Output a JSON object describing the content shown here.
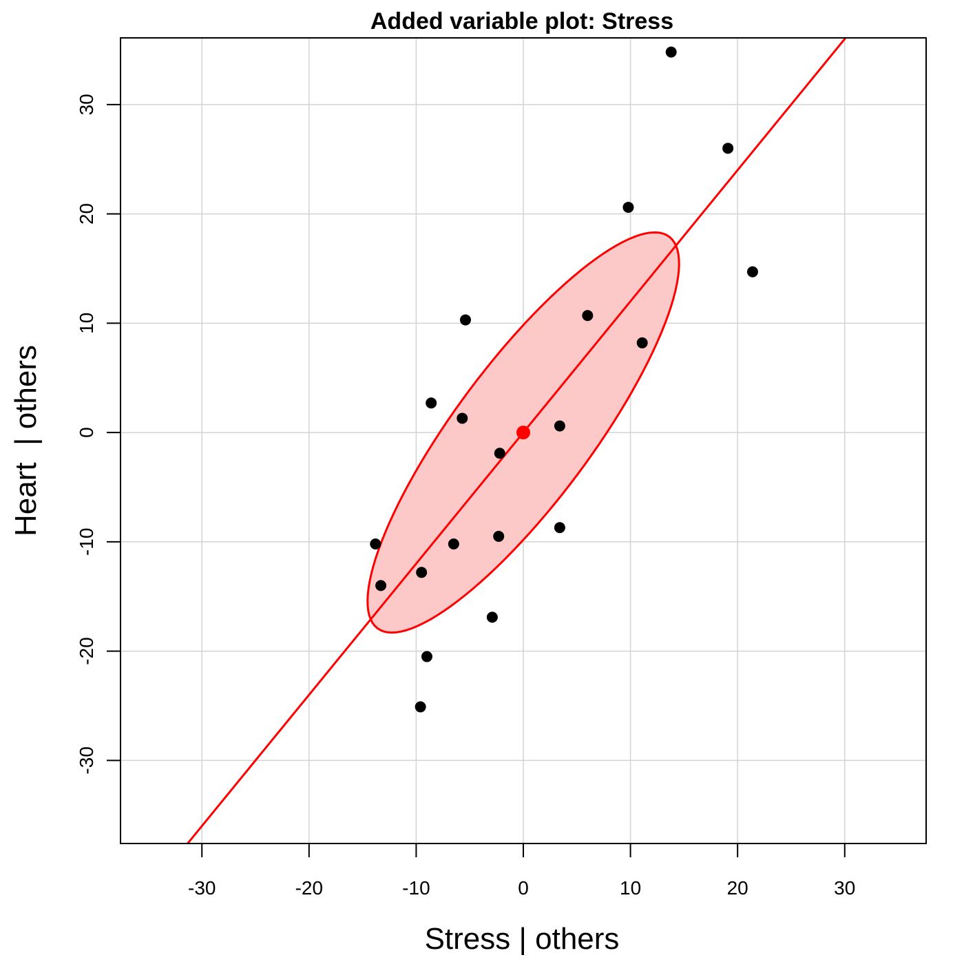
{
  "chart_data": {
    "type": "scatter",
    "title": "Added variable plot: Stress",
    "xlabel": "Stress | others",
    "ylabel": "Heart  | others",
    "xlim": [
      -37.6,
      37.6
    ],
    "ylim": [
      -37.6,
      36.1
    ],
    "xticks": [
      -30,
      -20,
      -10,
      0,
      10,
      20,
      30
    ],
    "yticks": [
      -30,
      -20,
      -10,
      0,
      10,
      20,
      30
    ],
    "grid": true,
    "colors": {
      "points": "#000000",
      "line": "#ff0000",
      "ellipse_fill": "#fcc8c8",
      "ellipse_stroke": "#ff0000",
      "centroid": "#ff0000",
      "grid": "#d3d3d3"
    },
    "points": [
      {
        "x": 13.8,
        "y": 34.8
      },
      {
        "x": 19.1,
        "y": 26.0
      },
      {
        "x": 9.8,
        "y": 20.6
      },
      {
        "x": 21.4,
        "y": 14.7
      },
      {
        "x": 6.0,
        "y": 10.7
      },
      {
        "x": -5.4,
        "y": 10.3
      },
      {
        "x": 11.1,
        "y": 8.2
      },
      {
        "x": -8.6,
        "y": 2.7
      },
      {
        "x": -5.7,
        "y": 1.3
      },
      {
        "x": 3.4,
        "y": 0.6
      },
      {
        "x": -2.2,
        "y": -1.9
      },
      {
        "x": 3.4,
        "y": -8.7
      },
      {
        "x": -2.3,
        "y": -9.5
      },
      {
        "x": -6.5,
        "y": -10.2
      },
      {
        "x": -13.8,
        "y": -10.2
      },
      {
        "x": -9.5,
        "y": -12.8
      },
      {
        "x": -13.3,
        "y": -14.0
      },
      {
        "x": -2.9,
        "y": -16.9
      },
      {
        "x": -9.0,
        "y": -20.5
      },
      {
        "x": -9.6,
        "y": -25.1
      }
    ],
    "centroid": {
      "x": 0,
      "y": 0
    },
    "regression": {
      "intercept": 0,
      "slope": 1.2
    },
    "ellipse": {
      "cx": 0,
      "cy": 0,
      "semi_major": 22.5,
      "semi_minor": 6.35,
      "angle_deg": 52.7
    }
  }
}
